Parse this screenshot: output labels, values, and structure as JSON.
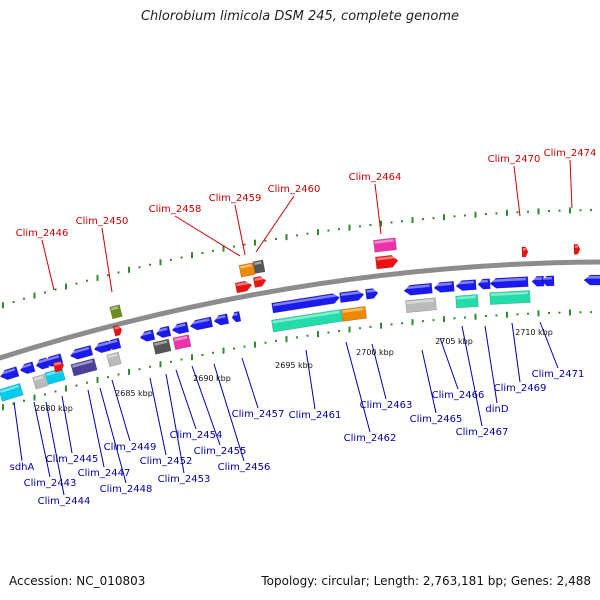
{
  "title": "Chlorobium limicola DSM 245, complete genome",
  "accession": "Accession: NC_010803",
  "topology": "Topology: circular; Length: 2,763,181 bp; Genes: 2,488",
  "colors": {
    "backbone": "#8c8c8c",
    "dots": "#2e8b2e",
    "label_red": "#cc0000",
    "label_blue": "#0000aa",
    "gene_blue": "#1a1aee",
    "gene_red": "#ee1111",
    "gene_cyan": "#00ccee",
    "gene_teal": "#22ddaa",
    "gene_magenta": "#ee33aa",
    "gene_orange": "#ee8800",
    "gene_olive": "#6b8e23",
    "gene_gray": "#bbbbbb",
    "gene_darkgray": "#555555",
    "gene_slate": "#4b3f99"
  },
  "scale_ticks": [
    "2680 kbp",
    "2685 kbp",
    "2690 kbp",
    "2695 kbp",
    "2700 kbp",
    "2705 kbp",
    "2710 kbp"
  ],
  "top_labels": [
    "Clim_2446",
    "Clim_2450",
    "Clim_2458",
    "Clim_2459",
    "Clim_2460",
    "Clim_2464",
    "Clim_2470",
    "Clim_2474"
  ],
  "bottom_labels": [
    "sdhA",
    "Clim_2443",
    "Clim_2444",
    "Clim_2445",
    "Clim_2447",
    "Clim_2448",
    "Clim_2449",
    "Clim_2452",
    "Clim_2453",
    "Clim_2454",
    "Clim_2455",
    "Clim_2456",
    "Clim_2457",
    "Clim_2461",
    "Clim_2462",
    "Clim_2463",
    "Clim_2465",
    "Clim_2466",
    "Clim_2467",
    "dinD",
    "Clim_2469",
    "Clim_2471"
  ]
}
